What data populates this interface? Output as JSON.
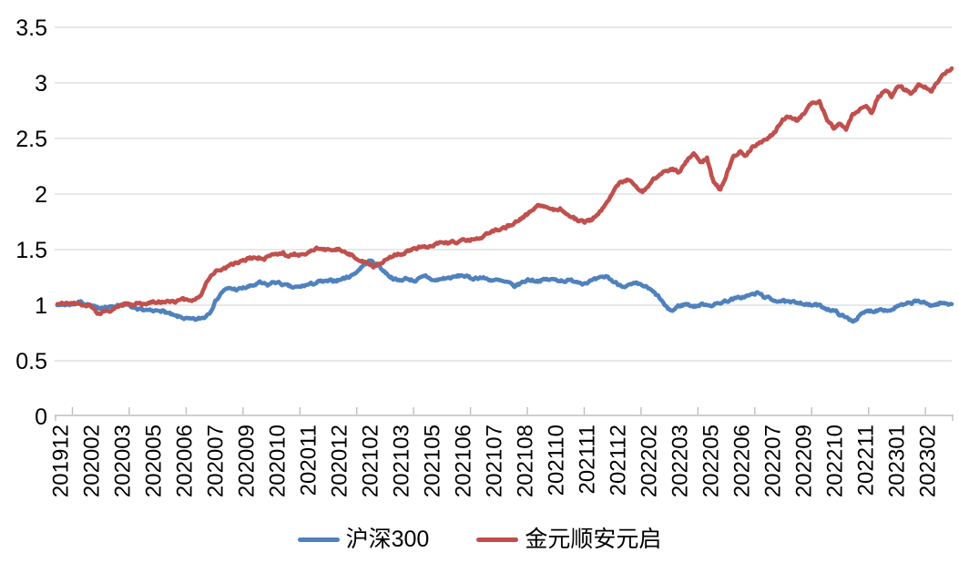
{
  "chart_data": {
    "type": "line",
    "title": "",
    "sampling": "daily (trading days), values are cumulative net value rebased to 1.0",
    "x_axis": {
      "labels": [
        "201912",
        "202002",
        "202003",
        "202005",
        "202006",
        "202007",
        "202009",
        "202010",
        "202011",
        "202012",
        "202102",
        "202103",
        "202105",
        "202106",
        "202107",
        "202108",
        "202110",
        "202111",
        "202112",
        "202202",
        "202203",
        "202205",
        "202206",
        "202207",
        "202209",
        "202210",
        "202211",
        "202301",
        "202302"
      ],
      "label_interval_days": 28,
      "total_days": 805,
      "tick_marks": "inside, light gray"
    },
    "y_axis": {
      "tick_labels": [
        "0",
        "0.5",
        "1",
        "1.5",
        "2",
        "2.5",
        "3",
        "3.5"
      ],
      "min": 0,
      "max": 3.5,
      "step": 0.5
    },
    "grid": true,
    "gridline_color": "#D9D9D9",
    "axis_line_color": "#BFBFBF",
    "legend_position": "bottom-center",
    "series": [
      {
        "name": "沪深300",
        "color": "#4F81BD",
        "anchors": [
          [
            0,
            1.0
          ],
          [
            13,
            1.01
          ],
          [
            21,
            1.03
          ],
          [
            29,
            1.0
          ],
          [
            36,
            0.97
          ],
          [
            42,
            0.99
          ],
          [
            48,
            0.98
          ],
          [
            54,
            1.0
          ],
          [
            61,
            1.01
          ],
          [
            67,
            0.98
          ],
          [
            72,
            0.95
          ],
          [
            79,
            0.96
          ],
          [
            86,
            0.94
          ],
          [
            92,
            0.96
          ],
          [
            99,
            0.93
          ],
          [
            105,
            0.9
          ],
          [
            112,
            0.89
          ],
          [
            119,
            0.87
          ],
          [
            125,
            0.87
          ],
          [
            132,
            0.89
          ],
          [
            137,
            0.94
          ],
          [
            143,
            1.05
          ],
          [
            149,
            1.13
          ],
          [
            155,
            1.15
          ],
          [
            162,
            1.14
          ],
          [
            170,
            1.16
          ],
          [
            177,
            1.18
          ],
          [
            182,
            1.2
          ],
          [
            189,
            1.18
          ],
          [
            195,
            1.21
          ],
          [
            202,
            1.19
          ],
          [
            204,
            1.18
          ],
          [
            211,
            1.16
          ],
          [
            217,
            1.16
          ],
          [
            223,
            1.18
          ],
          [
            229,
            1.19
          ],
          [
            235,
            1.21
          ],
          [
            241,
            1.21
          ],
          [
            248,
            1.22
          ],
          [
            254,
            1.23
          ],
          [
            260,
            1.25
          ],
          [
            265,
            1.27
          ],
          [
            270,
            1.31
          ],
          [
            274,
            1.35
          ],
          [
            278,
            1.38
          ],
          [
            281,
            1.4
          ],
          [
            285,
            1.38
          ],
          [
            289,
            1.36
          ],
          [
            293,
            1.31
          ],
          [
            299,
            1.26
          ],
          [
            306,
            1.22
          ],
          [
            314,
            1.24
          ],
          [
            322,
            1.22
          ],
          [
            331,
            1.26
          ],
          [
            339,
            1.22
          ],
          [
            347,
            1.24
          ],
          [
            356,
            1.25
          ],
          [
            364,
            1.27
          ],
          [
            372,
            1.24
          ],
          [
            380,
            1.25
          ],
          [
            389,
            1.23
          ],
          [
            397,
            1.22
          ],
          [
            405,
            1.2
          ],
          [
            411,
            1.17
          ],
          [
            417,
            1.2
          ],
          [
            423,
            1.23
          ],
          [
            432,
            1.22
          ],
          [
            440,
            1.23
          ],
          [
            448,
            1.23
          ],
          [
            456,
            1.22
          ],
          [
            465,
            1.22
          ],
          [
            473,
            1.2
          ],
          [
            481,
            1.22
          ],
          [
            488,
            1.24
          ],
          [
            494,
            1.26
          ],
          [
            500,
            1.21
          ],
          [
            504,
            1.19
          ],
          [
            511,
            1.17
          ],
          [
            520,
            1.19
          ],
          [
            528,
            1.17
          ],
          [
            534,
            1.13
          ],
          [
            541,
            1.07
          ],
          [
            548,
            0.97
          ],
          [
            553,
            0.95
          ],
          [
            558,
            0.99
          ],
          [
            565,
            1.01
          ],
          [
            573,
            0.99
          ],
          [
            582,
            1.01
          ],
          [
            590,
            1.0
          ],
          [
            598,
            1.03
          ],
          [
            606,
            1.05
          ],
          [
            615,
            1.07
          ],
          [
            623,
            1.09
          ],
          [
            630,
            1.11
          ],
          [
            635,
            1.08
          ],
          [
            642,
            1.05
          ],
          [
            650,
            1.04
          ],
          [
            659,
            1.02
          ],
          [
            667,
            1.03
          ],
          [
            675,
            1.0
          ],
          [
            683,
            1.0
          ],
          [
            692,
            0.97
          ],
          [
            700,
            0.94
          ],
          [
            708,
            0.89
          ],
          [
            716,
            0.86
          ],
          [
            722,
            0.91
          ],
          [
            729,
            0.95
          ],
          [
            735,
            0.95
          ],
          [
            741,
            0.97
          ],
          [
            748,
            0.95
          ],
          [
            755,
            0.99
          ],
          [
            761,
            1.0
          ],
          [
            768,
            1.02
          ],
          [
            774,
            1.04
          ],
          [
            781,
            1.01
          ],
          [
            788,
            1.0
          ],
          [
            794,
            1.02
          ],
          [
            801,
            1.01
          ],
          [
            804,
            1.02
          ]
        ]
      },
      {
        "name": "金元顺安元启",
        "color": "#C0504D",
        "anchors": [
          [
            0,
            1.01
          ],
          [
            13,
            1.02
          ],
          [
            21,
            1.0
          ],
          [
            29,
            0.99
          ],
          [
            36,
            0.92
          ],
          [
            42,
            0.95
          ],
          [
            48,
            0.94
          ],
          [
            54,
            0.98
          ],
          [
            61,
            1.02
          ],
          [
            67,
            1.0
          ],
          [
            72,
            1.02
          ],
          [
            79,
            1.0
          ],
          [
            86,
            1.04
          ],
          [
            92,
            1.03
          ],
          [
            99,
            1.04
          ],
          [
            105,
            1.03
          ],
          [
            112,
            1.05
          ],
          [
            119,
            1.04
          ],
          [
            125,
            1.06
          ],
          [
            129,
            1.08
          ],
          [
            135,
            1.22
          ],
          [
            142,
            1.3
          ],
          [
            149,
            1.32
          ],
          [
            155,
            1.36
          ],
          [
            162,
            1.38
          ],
          [
            170,
            1.41
          ],
          [
            178,
            1.43
          ],
          [
            186,
            1.42
          ],
          [
            195,
            1.46
          ],
          [
            203,
            1.47
          ],
          [
            207,
            1.44
          ],
          [
            213,
            1.46
          ],
          [
            220,
            1.45
          ],
          [
            226,
            1.47
          ],
          [
            233,
            1.52
          ],
          [
            240,
            1.5
          ],
          [
            246,
            1.51
          ],
          [
            253,
            1.5
          ],
          [
            260,
            1.48
          ],
          [
            266,
            1.44
          ],
          [
            273,
            1.4
          ],
          [
            279,
            1.38
          ],
          [
            284,
            1.35
          ],
          [
            291,
            1.38
          ],
          [
            298,
            1.42
          ],
          [
            304,
            1.46
          ],
          [
            311,
            1.47
          ],
          [
            317,
            1.5
          ],
          [
            324,
            1.52
          ],
          [
            332,
            1.53
          ],
          [
            341,
            1.55
          ],
          [
            349,
            1.56
          ],
          [
            357,
            1.57
          ],
          [
            365,
            1.58
          ],
          [
            374,
            1.6
          ],
          [
            382,
            1.62
          ],
          [
            390,
            1.66
          ],
          [
            398,
            1.68
          ],
          [
            407,
            1.72
          ],
          [
            415,
            1.76
          ],
          [
            423,
            1.82
          ],
          [
            430,
            1.88
          ],
          [
            436,
            1.9
          ],
          [
            444,
            1.85
          ],
          [
            452,
            1.87
          ],
          [
            462,
            1.8
          ],
          [
            468,
            1.76
          ],
          [
            474,
            1.75
          ],
          [
            481,
            1.77
          ],
          [
            487,
            1.83
          ],
          [
            493,
            1.9
          ],
          [
            499,
            2.0
          ],
          [
            505,
            2.1
          ],
          [
            513,
            2.13
          ],
          [
            520,
            2.08
          ],
          [
            526,
            2.02
          ],
          [
            532,
            2.08
          ],
          [
            539,
            2.16
          ],
          [
            546,
            2.2
          ],
          [
            553,
            2.22
          ],
          [
            559,
            2.2
          ],
          [
            566,
            2.3
          ],
          [
            572,
            2.37
          ],
          [
            578,
            2.28
          ],
          [
            584,
            2.32
          ],
          [
            590,
            2.1
          ],
          [
            596,
            2.04
          ],
          [
            602,
            2.19
          ],
          [
            608,
            2.33
          ],
          [
            614,
            2.38
          ],
          [
            619,
            2.35
          ],
          [
            626,
            2.43
          ],
          [
            632,
            2.47
          ],
          [
            639,
            2.5
          ],
          [
            645,
            2.56
          ],
          [
            652,
            2.67
          ],
          [
            659,
            2.7
          ],
          [
            665,
            2.66
          ],
          [
            672,
            2.73
          ],
          [
            678,
            2.83
          ],
          [
            685,
            2.83
          ],
          [
            692,
            2.67
          ],
          [
            698,
            2.59
          ],
          [
            703,
            2.63
          ],
          [
            709,
            2.58
          ],
          [
            715,
            2.72
          ],
          [
            722,
            2.76
          ],
          [
            727,
            2.78
          ],
          [
            732,
            2.73
          ],
          [
            738,
            2.88
          ],
          [
            745,
            2.94
          ],
          [
            750,
            2.87
          ],
          [
            756,
            2.97
          ],
          [
            762,
            2.94
          ],
          [
            768,
            2.9
          ],
          [
            774,
            2.98
          ],
          [
            781,
            2.96
          ],
          [
            786,
            2.93
          ],
          [
            793,
            3.04
          ],
          [
            799,
            3.1
          ],
          [
            804,
            3.12
          ]
        ]
      }
    ],
    "legend": [
      "沪深300",
      "金元顺安元启"
    ]
  },
  "colors": {
    "hs300": "#4F81BD",
    "fund": "#C0504D",
    "gridline": "#D9D9D9",
    "axis": "#BFBFBF",
    "text": "#000000",
    "background": "#FFFFFF"
  }
}
